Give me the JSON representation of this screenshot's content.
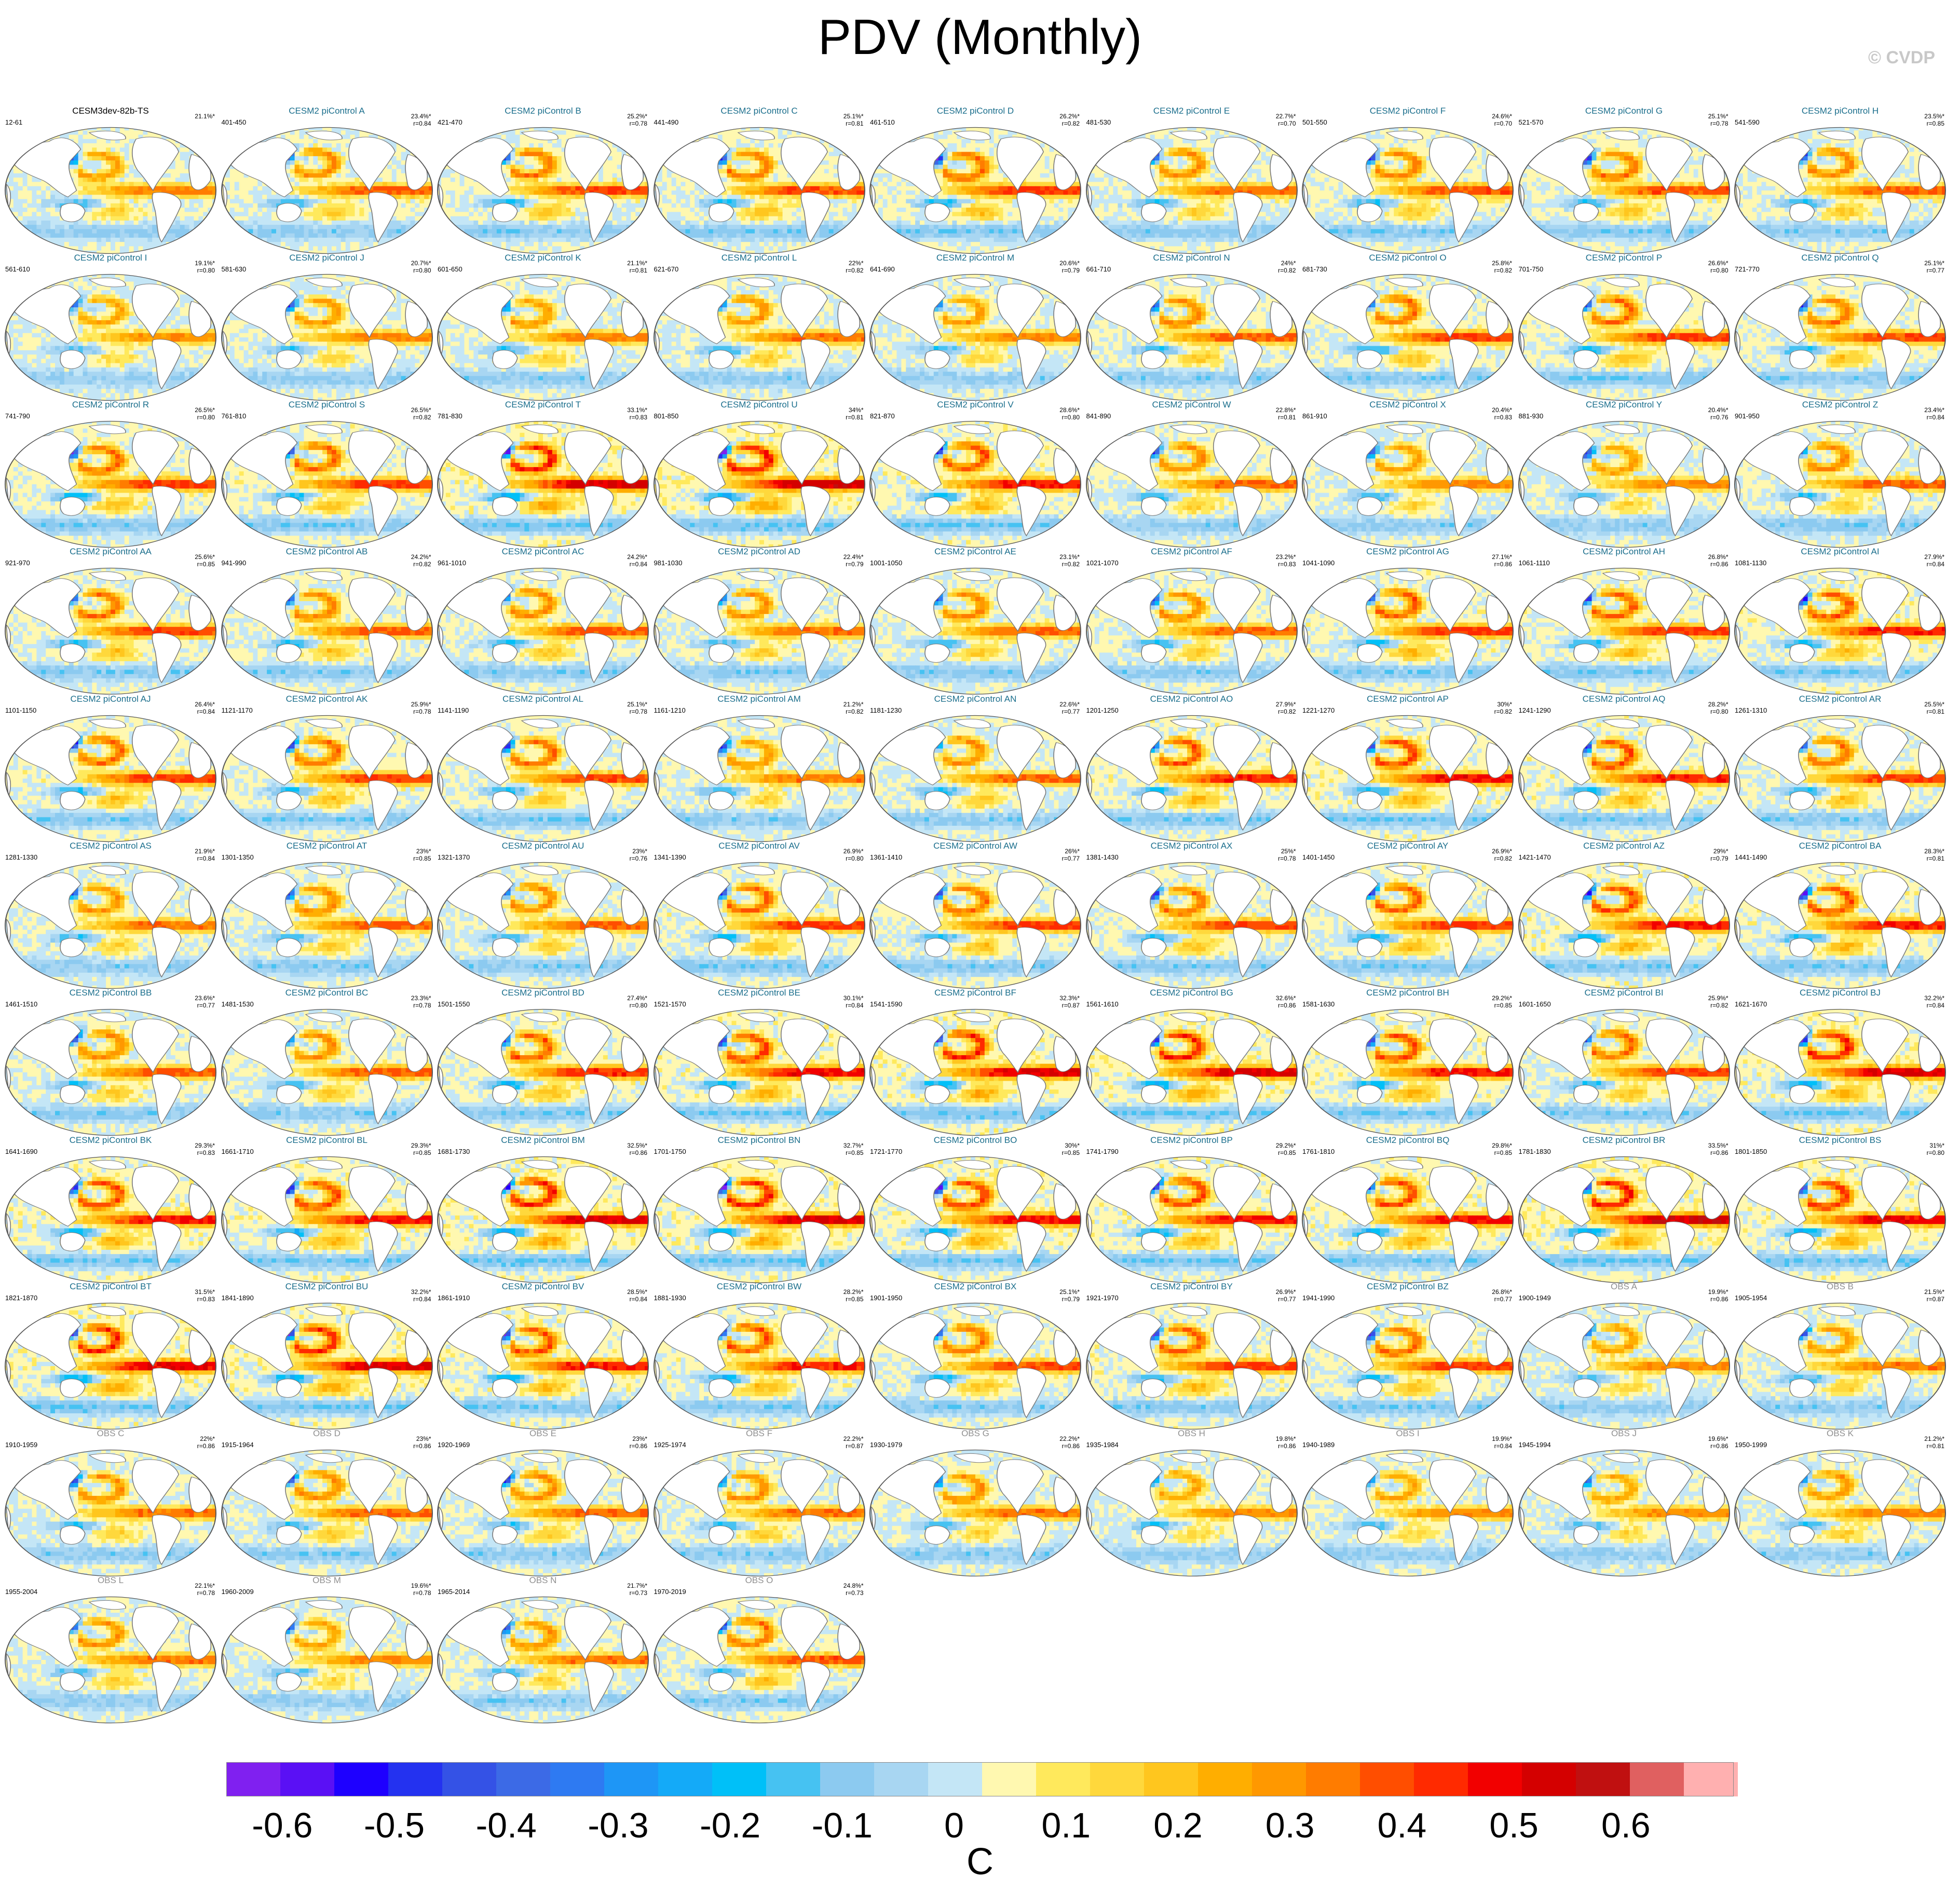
{
  "title": "PDV (Monthly)",
  "copyright": "© CVDP",
  "chart_data": {
    "type": "heatmap",
    "title": "PDV (Monthly)",
    "description_type": "multi-panel SST regression maps",
    "colorbar": {
      "units": "C",
      "levels": [
        -0.65,
        -0.6,
        -0.55,
        -0.5,
        -0.45,
        -0.4,
        -0.35,
        -0.3,
        -0.25,
        -0.2,
        -0.15,
        -0.1,
        -0.05,
        0,
        0.05,
        0.1,
        0.15,
        0.2,
        0.25,
        0.3,
        0.35,
        0.4,
        0.45,
        0.5,
        0.55,
        0.6,
        0.65,
        0.7
      ],
      "tick_labels": [
        "-0.6",
        "-0.5",
        "-0.4",
        "-0.3",
        "-0.2",
        "-0.1",
        "0",
        "0.1",
        "0.2",
        "0.3",
        "0.4",
        "0.5",
        "0.6"
      ],
      "tick_values": [
        -0.6,
        -0.5,
        -0.4,
        -0.3,
        -0.2,
        -0.1,
        0,
        0.1,
        0.2,
        0.3,
        0.4,
        0.5,
        0.6
      ],
      "colors": [
        "#8020f0",
        "#5a10f5",
        "#1e00ff",
        "#2432f0",
        "#3452e6",
        "#3c6ae6",
        "#2e7af2",
        "#1e96f6",
        "#14aaf8",
        "#00c0f8",
        "#46c2f2",
        "#8ccaf0",
        "#a8d6f2",
        "#c4e6f6",
        "#fff8b0",
        "#ffe95c",
        "#ffd83c",
        "#ffc61e",
        "#ffae00",
        "#ff9800",
        "#ff7c00",
        "#ff4e00",
        "#ff2a00",
        "#f20000",
        "#d40000",
        "#c01010",
        "#e06060",
        "#ffb0b0"
      ]
    },
    "panels": [
      {
        "title": "CESM3dev-82b-TS",
        "years": "12-61",
        "pct": "21.1%*",
        "r": ""
      },
      {
        "title": "CESM2 piControl A",
        "years": "401-450",
        "pct": "23.4%*",
        "r": "r=0.84"
      },
      {
        "title": "CESM2 piControl B",
        "years": "421-470",
        "pct": "25.2%*",
        "r": "r=0.78"
      },
      {
        "title": "CESM2 piControl C",
        "years": "441-490",
        "pct": "25.1%*",
        "r": "r=0.81"
      },
      {
        "title": "CESM2 piControl D",
        "years": "461-510",
        "pct": "26.2%*",
        "r": "r=0.82"
      },
      {
        "title": "CESM2 piControl E",
        "years": "481-530",
        "pct": "22.7%*",
        "r": "r=0.70"
      },
      {
        "title": "CESM2 piControl F",
        "years": "501-550",
        "pct": "24.6%*",
        "r": "r=0.70"
      },
      {
        "title": "CESM2 piControl G",
        "years": "521-570",
        "pct": "25.1%*",
        "r": "r=0.78"
      },
      {
        "title": "CESM2 piControl H",
        "years": "541-590",
        "pct": "23.5%*",
        "r": "r=0.85"
      },
      {
        "title": "CESM2 piControl I",
        "years": "561-610",
        "pct": "19.1%*",
        "r": "r=0.80"
      },
      {
        "title": "CESM2 piControl J",
        "years": "581-630",
        "pct": "20.7%*",
        "r": "r=0.80"
      },
      {
        "title": "CESM2 piControl K",
        "years": "601-650",
        "pct": "21.1%*",
        "r": "r=0.81"
      },
      {
        "title": "CESM2 piControl L",
        "years": "621-670",
        "pct": "22%*",
        "r": "r=0.82"
      },
      {
        "title": "CESM2 piControl M",
        "years": "641-690",
        "pct": "20.6%*",
        "r": "r=0.79"
      },
      {
        "title": "CESM2 piControl N",
        "years": "661-710",
        "pct": "24%*",
        "r": "r=0.82"
      },
      {
        "title": "CESM2 piControl O",
        "years": "681-730",
        "pct": "25.8%*",
        "r": "r=0.82"
      },
      {
        "title": "CESM2 piControl P",
        "years": "701-750",
        "pct": "26.6%*",
        "r": "r=0.80"
      },
      {
        "title": "CESM2 piControl Q",
        "years": "721-770",
        "pct": "25.1%*",
        "r": "r=0.77"
      },
      {
        "title": "CESM2 piControl R",
        "years": "741-790",
        "pct": "26.5%*",
        "r": "r=0.80"
      },
      {
        "title": "CESM2 piControl S",
        "years": "761-810",
        "pct": "26.5%*",
        "r": "r=0.82"
      },
      {
        "title": "CESM2 piControl T",
        "years": "781-830",
        "pct": "33.1%*",
        "r": "r=0.83"
      },
      {
        "title": "CESM2 piControl U",
        "years": "801-850",
        "pct": "34%*",
        "r": "r=0.81"
      },
      {
        "title": "CESM2 piControl V",
        "years": "821-870",
        "pct": "28.6%*",
        "r": "r=0.80"
      },
      {
        "title": "CESM2 piControl W",
        "years": "841-890",
        "pct": "22.8%*",
        "r": "r=0.81"
      },
      {
        "title": "CESM2 piControl X",
        "years": "861-910",
        "pct": "20.4%*",
        "r": "r=0.83"
      },
      {
        "title": "CESM2 piControl Y",
        "years": "881-930",
        "pct": "20.4%*",
        "r": "r=0.76"
      },
      {
        "title": "CESM2 piControl Z",
        "years": "901-950",
        "pct": "23.4%*",
        "r": "r=0.84"
      },
      {
        "title": "CESM2 piControl AA",
        "years": "921-970",
        "pct": "25.6%*",
        "r": "r=0.85"
      },
      {
        "title": "CESM2 piControl AB",
        "years": "941-990",
        "pct": "24.2%*",
        "r": "r=0.82"
      },
      {
        "title": "CESM2 piControl AC",
        "years": "961-1010",
        "pct": "24.2%*",
        "r": "r=0.84"
      },
      {
        "title": "CESM2 piControl AD",
        "years": "981-1030",
        "pct": "22.4%*",
        "r": "r=0.79"
      },
      {
        "title": "CESM2 piControl AE",
        "years": "1001-1050",
        "pct": "23.1%*",
        "r": "r=0.82"
      },
      {
        "title": "CESM2 piControl AF",
        "years": "1021-1070",
        "pct": "23.2%*",
        "r": "r=0.83"
      },
      {
        "title": "CESM2 piControl AG",
        "years": "1041-1090",
        "pct": "27.1%*",
        "r": "r=0.86"
      },
      {
        "title": "CESM2 piControl AH",
        "years": "1061-1110",
        "pct": "26.8%*",
        "r": "r=0.86"
      },
      {
        "title": "CESM2 piControl AI",
        "years": "1081-1130",
        "pct": "27.9%*",
        "r": "r=0.84"
      },
      {
        "title": "CESM2 piControl AJ",
        "years": "1101-1150",
        "pct": "26.4%*",
        "r": "r=0.84"
      },
      {
        "title": "CESM2 piControl AK",
        "years": "1121-1170",
        "pct": "25.9%*",
        "r": "r=0.78"
      },
      {
        "title": "CESM2 piControl AL",
        "years": "1141-1190",
        "pct": "25.1%*",
        "r": "r=0.78"
      },
      {
        "title": "CESM2 piControl AM",
        "years": "1161-1210",
        "pct": "21.2%*",
        "r": "r=0.82"
      },
      {
        "title": "CESM2 piControl AN",
        "years": "1181-1230",
        "pct": "22.6%*",
        "r": "r=0.77"
      },
      {
        "title": "CESM2 piControl AO",
        "years": "1201-1250",
        "pct": "27.9%*",
        "r": "r=0.82"
      },
      {
        "title": "CESM2 piControl AP",
        "years": "1221-1270",
        "pct": "30%*",
        "r": "r=0.82"
      },
      {
        "title": "CESM2 piControl AQ",
        "years": "1241-1290",
        "pct": "28.2%*",
        "r": "r=0.80"
      },
      {
        "title": "CESM2 piControl AR",
        "years": "1261-1310",
        "pct": "25.5%*",
        "r": "r=0.81"
      },
      {
        "title": "CESM2 piControl AS",
        "years": "1281-1330",
        "pct": "21.9%*",
        "r": "r=0.84"
      },
      {
        "title": "CESM2 piControl AT",
        "years": "1301-1350",
        "pct": "23%*",
        "r": "r=0.85"
      },
      {
        "title": "CESM2 piControl AU",
        "years": "1321-1370",
        "pct": "23%*",
        "r": "r=0.76"
      },
      {
        "title": "CESM2 piControl AV",
        "years": "1341-1390",
        "pct": "26.9%*",
        "r": "r=0.80"
      },
      {
        "title": "CESM2 piControl AW",
        "years": "1361-1410",
        "pct": "26%*",
        "r": "r=0.77"
      },
      {
        "title": "CESM2 piControl AX",
        "years": "1381-1430",
        "pct": "25%*",
        "r": "r=0.78"
      },
      {
        "title": "CESM2 piControl AY",
        "years": "1401-1450",
        "pct": "26.9%*",
        "r": "r=0.82"
      },
      {
        "title": "CESM2 piControl AZ",
        "years": "1421-1470",
        "pct": "29%*",
        "r": "r=0.79"
      },
      {
        "title": "CESM2 piControl BA",
        "years": "1441-1490",
        "pct": "28.3%*",
        "r": "r=0.81"
      },
      {
        "title": "CESM2 piControl BB",
        "years": "1461-1510",
        "pct": "23.6%*",
        "r": "r=0.77"
      },
      {
        "title": "CESM2 piControl BC",
        "years": "1481-1530",
        "pct": "23.3%*",
        "r": "r=0.78"
      },
      {
        "title": "CESM2 piControl BD",
        "years": "1501-1550",
        "pct": "27.4%*",
        "r": "r=0.80"
      },
      {
        "title": "CESM2 piControl BE",
        "years": "1521-1570",
        "pct": "30.1%*",
        "r": "r=0.84"
      },
      {
        "title": "CESM2 piControl BF",
        "years": "1541-1590",
        "pct": "32.3%*",
        "r": "r=0.87"
      },
      {
        "title": "CESM2 piControl BG",
        "years": "1561-1610",
        "pct": "32.6%*",
        "r": "r=0.86"
      },
      {
        "title": "CESM2 piControl BH",
        "years": "1581-1630",
        "pct": "29.2%*",
        "r": "r=0.85"
      },
      {
        "title": "CESM2 piControl BI",
        "years": "1601-1650",
        "pct": "25.9%*",
        "r": "r=0.82"
      },
      {
        "title": "CESM2 piControl BJ",
        "years": "1621-1670",
        "pct": "32.2%*",
        "r": "r=0.84"
      },
      {
        "title": "CESM2 piControl BK",
        "years": "1641-1690",
        "pct": "29.3%*",
        "r": "r=0.83"
      },
      {
        "title": "CESM2 piControl BL",
        "years": "1661-1710",
        "pct": "29.3%*",
        "r": "r=0.85"
      },
      {
        "title": "CESM2 piControl BM",
        "years": "1681-1730",
        "pct": "32.5%*",
        "r": "r=0.86"
      },
      {
        "title": "CESM2 piControl BN",
        "years": "1701-1750",
        "pct": "32.7%*",
        "r": "r=0.85"
      },
      {
        "title": "CESM2 piControl BO",
        "years": "1721-1770",
        "pct": "30%*",
        "r": "r=0.85"
      },
      {
        "title": "CESM2 piControl BP",
        "years": "1741-1790",
        "pct": "29.2%*",
        "r": "r=0.85"
      },
      {
        "title": "CESM2 piControl BQ",
        "years": "1761-1810",
        "pct": "29.8%*",
        "r": "r=0.85"
      },
      {
        "title": "CESM2 piControl BR",
        "years": "1781-1830",
        "pct": "33.5%*",
        "r": "r=0.86"
      },
      {
        "title": "CESM2 piControl BS",
        "years": "1801-1850",
        "pct": "31%*",
        "r": "r=0.80"
      },
      {
        "title": "CESM2 piControl BT",
        "years": "1821-1870",
        "pct": "31.5%*",
        "r": "r=0.83"
      },
      {
        "title": "CESM2 piControl BU",
        "years": "1841-1890",
        "pct": "32.2%*",
        "r": "r=0.84"
      },
      {
        "title": "CESM2 piControl BV",
        "years": "1861-1910",
        "pct": "28.5%*",
        "r": "r=0.84"
      },
      {
        "title": "CESM2 piControl BW",
        "years": "1881-1930",
        "pct": "28.2%*",
        "r": "r=0.85"
      },
      {
        "title": "CESM2 piControl BX",
        "years": "1901-1950",
        "pct": "25.1%*",
        "r": "r=0.79"
      },
      {
        "title": "CESM2 piControl BY",
        "years": "1921-1970",
        "pct": "26.9%*",
        "r": "r=0.77"
      },
      {
        "title": "CESM2 piControl BZ",
        "years": "1941-1990",
        "pct": "26.8%*",
        "r": "r=0.77"
      },
      {
        "title": "OBS A",
        "years": "1900-1949",
        "pct": "19.9%*",
        "r": "r=0.86"
      },
      {
        "title": "OBS B",
        "years": "1905-1954",
        "pct": "21.5%*",
        "r": "r=0.87"
      },
      {
        "title": "OBS C",
        "years": "1910-1959",
        "pct": "22%*",
        "r": "r=0.86"
      },
      {
        "title": "OBS D",
        "years": "1915-1964",
        "pct": "23%*",
        "r": "r=0.86"
      },
      {
        "title": "OBS E",
        "years": "1920-1969",
        "pct": "23%*",
        "r": "r=0.86"
      },
      {
        "title": "OBS F",
        "years": "1925-1974",
        "pct": "22.2%*",
        "r": "r=0.87"
      },
      {
        "title": "OBS G",
        "years": "1930-1979",
        "pct": "22.2%*",
        "r": "r=0.86"
      },
      {
        "title": "OBS H",
        "years": "1935-1984",
        "pct": "19.8%*",
        "r": "r=0.86"
      },
      {
        "title": "OBS I",
        "years": "1940-1989",
        "pct": "19.9%*",
        "r": "r=0.84"
      },
      {
        "title": "OBS J",
        "years": "1945-1994",
        "pct": "19.6%*",
        "r": "r=0.86"
      },
      {
        "title": "OBS K",
        "years": "1950-1999",
        "pct": "21.2%*",
        "r": "r=0.81"
      },
      {
        "title": "OBS L",
        "years": "1955-2004",
        "pct": "22.1%*",
        "r": "r=0.78"
      },
      {
        "title": "OBS M",
        "years": "1960-2009",
        "pct": "19.6%*",
        "r": "r=0.78"
      },
      {
        "title": "OBS N",
        "years": "1965-2014",
        "pct": "21.7%*",
        "r": "r=0.73"
      },
      {
        "title": "OBS O",
        "years": "1970-2019",
        "pct": "24.8%*",
        "r": "r=0.73"
      }
    ]
  },
  "colors": {
    "model_title": "#1a6e8c",
    "obs_title": "#909090",
    "reference_title": "#000000",
    "copyright": "#c8c8c8"
  }
}
